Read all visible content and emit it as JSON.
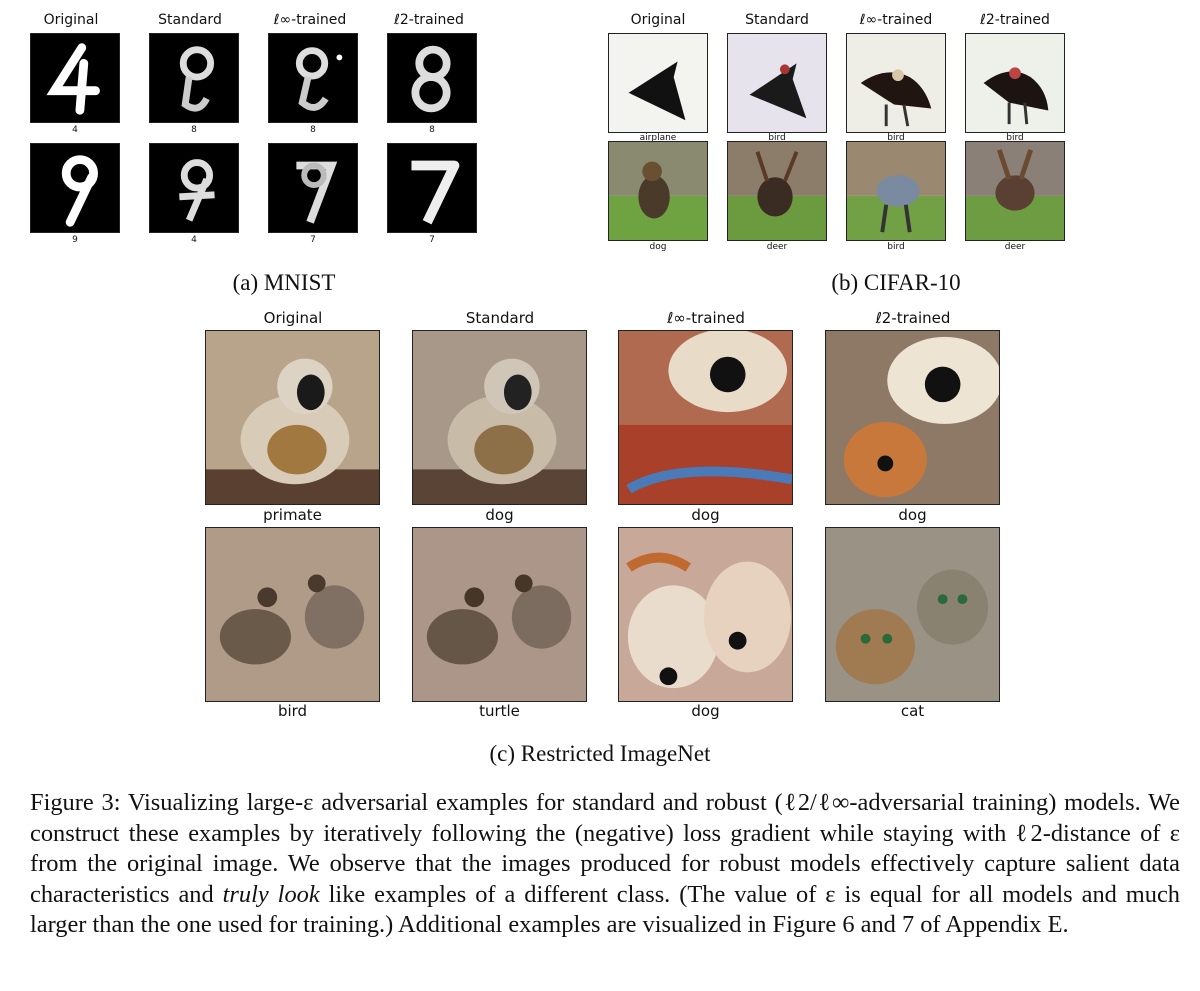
{
  "mnist": {
    "headers": [
      "Original",
      "Standard",
      "ℓ∞-trained",
      "ℓ2-trained"
    ],
    "row1_labels": [
      "4",
      "8",
      "8",
      "8"
    ],
    "row2_labels": [
      "9",
      "4",
      "7",
      "7"
    ],
    "subcaption": "(a) MNIST"
  },
  "cifar": {
    "headers": [
      "Original",
      "Standard",
      "ℓ∞-trained",
      "ℓ2-trained"
    ],
    "row1_labels": [
      "airplane",
      "bird",
      "bird",
      "bird"
    ],
    "row2_labels": [
      "dog",
      "deer",
      "bird",
      "deer"
    ],
    "subcaption": "(b) CIFAR-10"
  },
  "imagenet": {
    "headers": [
      "Original",
      "Standard",
      "ℓ∞-trained",
      "ℓ2-trained"
    ],
    "row1_labels": [
      "primate",
      "dog",
      "dog",
      "dog"
    ],
    "row2_labels": [
      "bird",
      "turtle",
      "dog",
      "cat"
    ],
    "subcaption": "(c) Restricted ImageNet"
  },
  "caption": {
    "part1": "Figure 3: Visualizing large-ε adversarial examples for standard and robust (ℓ2/ℓ∞-adversarial training) models. We construct these examples by iteratively following the (negative) loss gradient while staying with ℓ2-distance of ε from the original image. We observe that the images produced for robust models effectively capture salient data characteristics and",
    "emph": "truly look",
    "part2": "like examples of a different class. (The value of ε is equal for all models and much larger than the one used for training.) Additional examples are visualized in Figure 6 and 7 of Appendix E."
  }
}
